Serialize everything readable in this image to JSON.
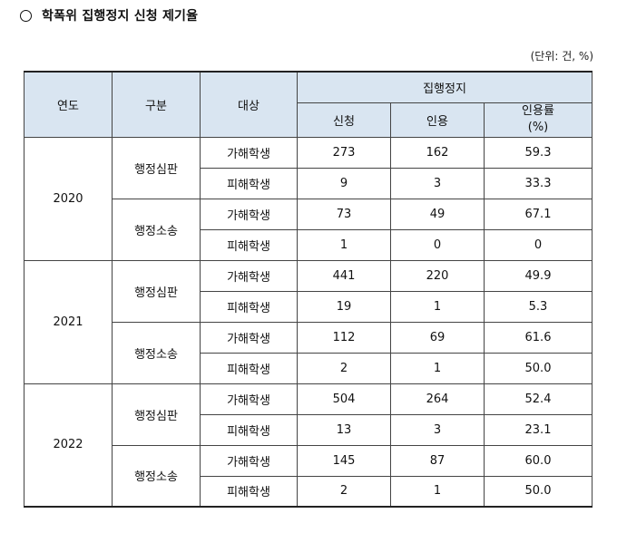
{
  "title": "학폭위 집행정지 신청 제기율",
  "unit": "(단위: 건, %)",
  "headers": {
    "year": "연도",
    "category": "구분",
    "target": "대상",
    "group": "집행정지",
    "apply": "신청",
    "accept": "인용",
    "rate_line1": "인용률",
    "rate_line2": "(%)"
  },
  "years": [
    {
      "year": "2020",
      "categories": [
        {
          "name": "행정심판",
          "rows": [
            {
              "target": "가해학생",
              "apply": "273",
              "accept": "162",
              "rate": "59.3"
            },
            {
              "target": "피해학생",
              "apply": "9",
              "accept": "3",
              "rate": "33.3"
            }
          ]
        },
        {
          "name": "행정소송",
          "rows": [
            {
              "target": "가해학생",
              "apply": "73",
              "accept": "49",
              "rate": "67.1"
            },
            {
              "target": "피해학생",
              "apply": "1",
              "accept": "0",
              "rate": "0"
            }
          ]
        }
      ]
    },
    {
      "year": "2021",
      "categories": [
        {
          "name": "행정심판",
          "rows": [
            {
              "target": "가해학생",
              "apply": "441",
              "accept": "220",
              "rate": "49.9"
            },
            {
              "target": "피해학생",
              "apply": "19",
              "accept": "1",
              "rate": "5.3"
            }
          ]
        },
        {
          "name": "행정소송",
          "rows": [
            {
              "target": "가해학생",
              "apply": "112",
              "accept": "69",
              "rate": "61.6"
            },
            {
              "target": "피해학생",
              "apply": "2",
              "accept": "1",
              "rate": "50.0"
            }
          ]
        }
      ]
    },
    {
      "year": "2022",
      "categories": [
        {
          "name": "행정심판",
          "rows": [
            {
              "target": "가해학생",
              "apply": "504",
              "accept": "264",
              "rate": "52.4"
            },
            {
              "target": "피해학생",
              "apply": "13",
              "accept": "3",
              "rate": "23.1"
            }
          ]
        },
        {
          "name": "행정소송",
          "rows": [
            {
              "target": "가해학생",
              "apply": "145",
              "accept": "87",
              "rate": "60.0"
            },
            {
              "target": "피해학생",
              "apply": "2",
              "accept": "1",
              "rate": "50.0"
            }
          ]
        }
      ]
    }
  ]
}
